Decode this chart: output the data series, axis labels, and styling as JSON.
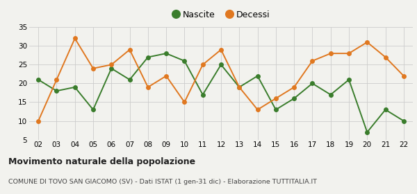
{
  "years": [
    "02",
    "03",
    "04",
    "05",
    "06",
    "07",
    "08",
    "09",
    "10",
    "11",
    "12",
    "13",
    "14",
    "15",
    "16",
    "17",
    "18",
    "19",
    "20",
    "21",
    "22"
  ],
  "nascite": [
    21,
    18,
    19,
    13,
    24,
    21,
    27,
    28,
    26,
    17,
    25,
    19,
    22,
    13,
    16,
    20,
    17,
    21,
    7,
    13,
    10
  ],
  "decessi": [
    10,
    21,
    32,
    24,
    25,
    29,
    19,
    22,
    15,
    25,
    29,
    19,
    13,
    16,
    19,
    26,
    28,
    28,
    31,
    27,
    22
  ],
  "nascite_color": "#3a7d2c",
  "decessi_color": "#e07820",
  "bg_color": "#f2f2ee",
  "grid_color": "#cccccc",
  "ylim": [
    5,
    35
  ],
  "yticks": [
    5,
    10,
    15,
    20,
    25,
    30,
    35
  ],
  "title": "Movimento naturale della popolazione",
  "subtitle": "COMUNE DI TOVO SAN GIACOMO (SV) - Dati ISTAT (1 gen-31 dic) - Elaborazione TUTTITALIA.IT",
  "legend_nascite": "Nascite",
  "legend_decessi": "Decessi",
  "marker_size": 4,
  "line_width": 1.4
}
